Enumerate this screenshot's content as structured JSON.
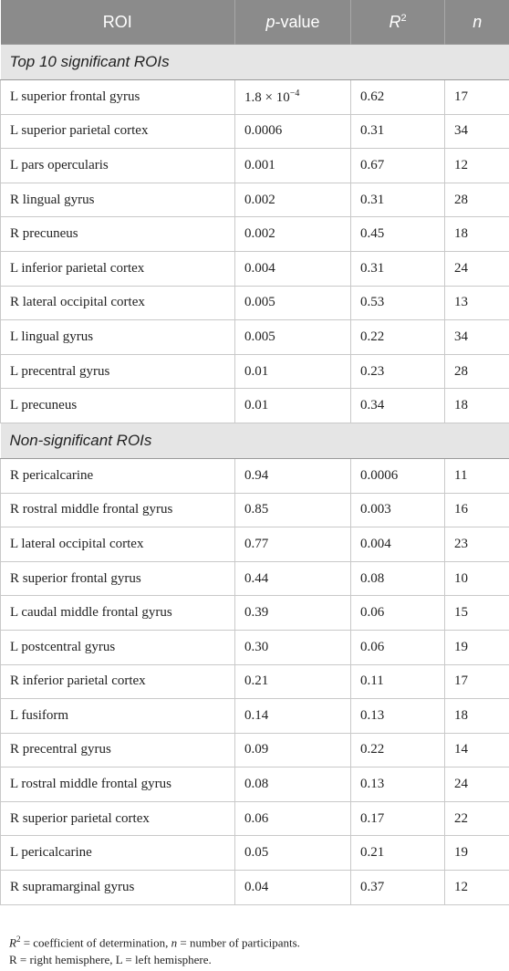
{
  "headers": {
    "roi": "ROI",
    "p_italic": "p",
    "p_rest": "-value",
    "r_letter": "R",
    "r_sup": "2",
    "n": "n"
  },
  "sections": [
    {
      "title": "Top 10 significant ROIs",
      "rows": [
        {
          "roi": "L superior frontal gyrus",
          "p": "1.8 × 10",
          "p_exp": "−4",
          "r2": "0.62",
          "n": "17"
        },
        {
          "roi": "L superior parietal cortex",
          "p": "0.0006",
          "r2": "0.31",
          "n": "34"
        },
        {
          "roi": "L pars opercularis",
          "p": "0.001",
          "r2": "0.67",
          "n": "12"
        },
        {
          "roi": "R lingual gyrus",
          "p": "0.002",
          "r2": "0.31",
          "n": "28"
        },
        {
          "roi": "R precuneus",
          "p": "0.002",
          "r2": "0.45",
          "n": "18"
        },
        {
          "roi": "L inferior parietal cortex",
          "p": "0.004",
          "r2": "0.31",
          "n": "24"
        },
        {
          "roi": "R lateral occipital cortex",
          "p": "0.005",
          "r2": "0.53",
          "n": "13"
        },
        {
          "roi": "L lingual gyrus",
          "p": "0.005",
          "r2": "0.22",
          "n": "34"
        },
        {
          "roi": "L precentral gyrus",
          "p": "0.01",
          "r2": "0.23",
          "n": "28"
        },
        {
          "roi": "L precuneus",
          "p": "0.01",
          "r2": "0.34",
          "n": "18"
        }
      ]
    },
    {
      "title": "Non-significant ROIs",
      "rows": [
        {
          "roi": "R pericalcarine",
          "p": "0.94",
          "r2": "0.0006",
          "n": "11"
        },
        {
          "roi": "R rostral middle frontal gyrus",
          "p": "0.85",
          "r2": "0.003",
          "n": "16"
        },
        {
          "roi": "L lateral occipital cortex",
          "p": "0.77",
          "r2": "0.004",
          "n": "23"
        },
        {
          "roi": "R superior frontal gyrus",
          "p": "0.44",
          "r2": "0.08",
          "n": "10"
        },
        {
          "roi": "L caudal middle frontal gyrus",
          "p": "0.39",
          "r2": "0.06",
          "n": "15"
        },
        {
          "roi": "L postcentral gyrus",
          "p": "0.30",
          "r2": "0.06",
          "n": "19"
        },
        {
          "roi": "R inferior parietal cortex",
          "p": "0.21",
          "r2": "0.11",
          "n": "17"
        },
        {
          "roi": "L fusiform",
          "p": "0.14",
          "r2": "0.13",
          "n": "18"
        },
        {
          "roi": "R precentral gyrus",
          "p": "0.09",
          "r2": "0.22",
          "n": "14"
        },
        {
          "roi": "L rostral middle frontal gyrus",
          "p": "0.08",
          "r2": "0.13",
          "n": "24"
        },
        {
          "roi": "R superior parietal cortex",
          "p": "0.06",
          "r2": "0.17",
          "n": "22"
        },
        {
          "roi": "L pericalcarine",
          "p": "0.05",
          "r2": "0.21",
          "n": "19"
        },
        {
          "roi": "R supramarginal gyrus",
          "p": "0.04",
          "r2": "0.37",
          "n": "12"
        }
      ]
    }
  ],
  "notes": {
    "line1_r": "R",
    "line1_sup": "2",
    "line1_a": " = coefficient of determination, ",
    "line1_n": "n",
    "line1_b": " = number of participants.",
    "line2": "R = right hemisphere, L = left hemisphere."
  }
}
